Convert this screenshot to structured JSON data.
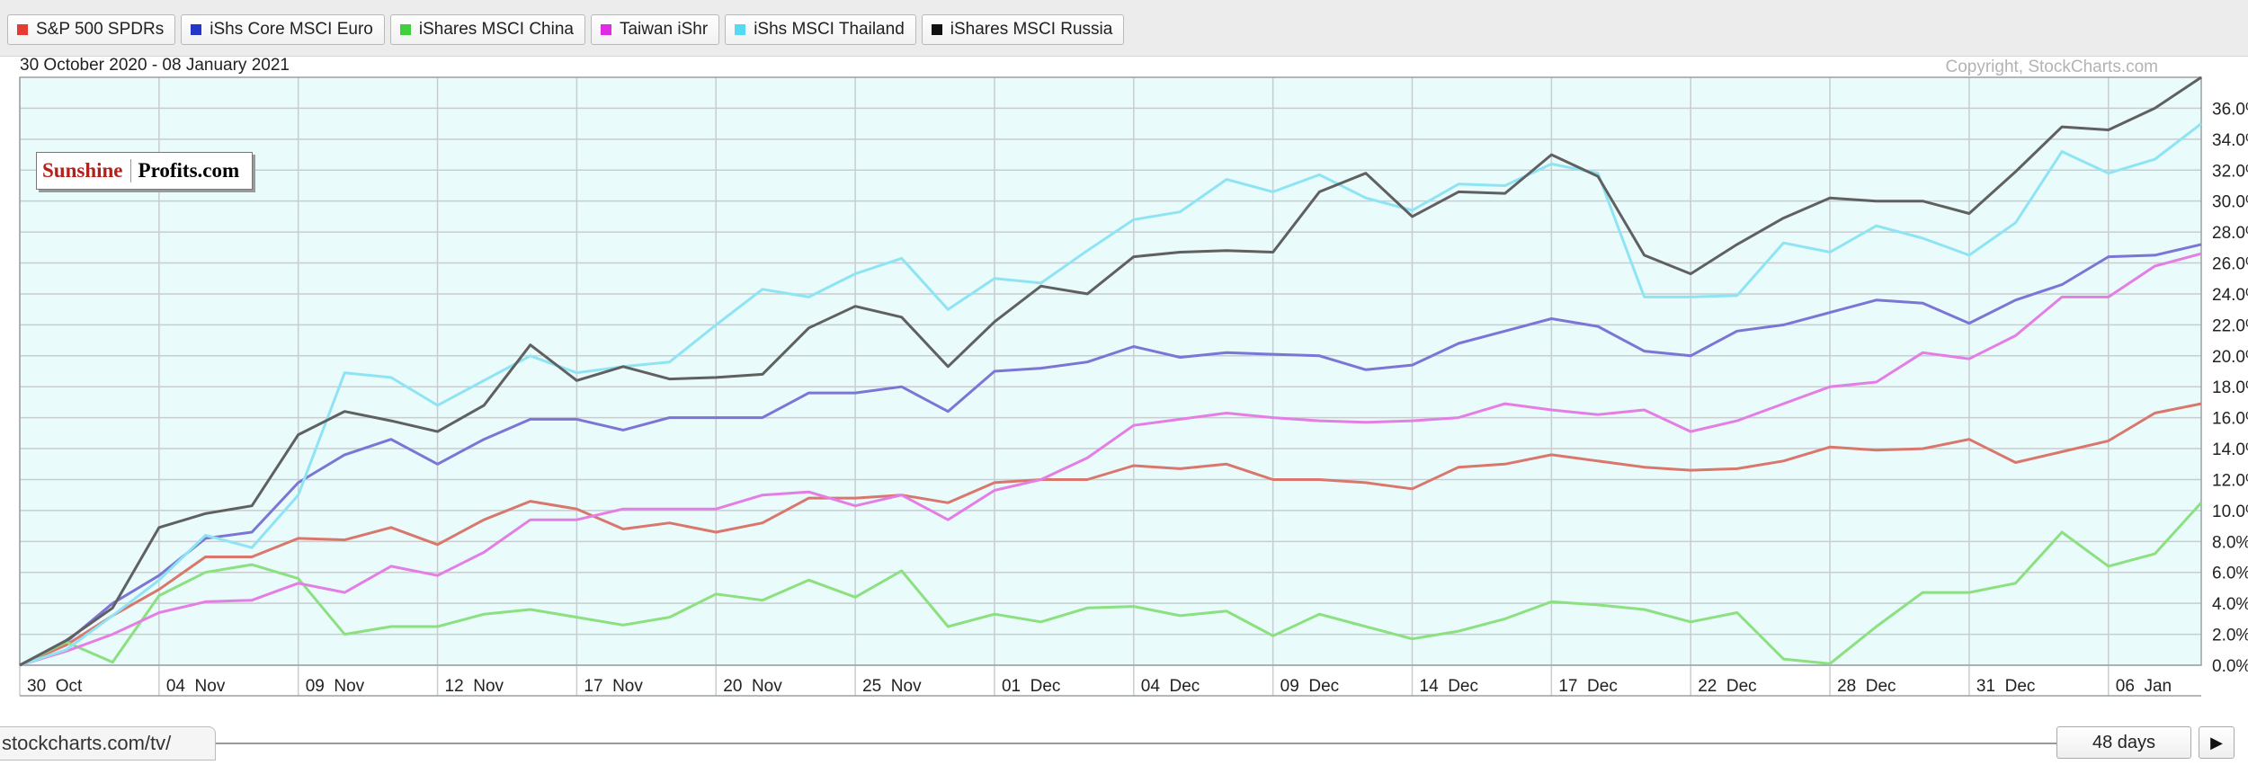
{
  "header": {
    "date_range": "30 October 2020 - 08 January 2021",
    "copyright": "Copyright, StockCharts.com"
  },
  "logo": {
    "part1": "Sunshine",
    "part2": "Profits.com"
  },
  "status_bar": {
    "url_text": "stockcharts.com/tv/"
  },
  "controls": {
    "range_label": "48 days",
    "play_icon": "▶"
  },
  "colors": {
    "plot_background": "#e9fbfb",
    "grid": "#c8cdd0"
  },
  "chart_data": {
    "type": "line",
    "y_unit": "%",
    "ylim": [
      0,
      38
    ],
    "ytick_values": [
      0,
      2,
      4,
      6,
      8,
      10,
      12,
      14,
      16,
      18,
      20,
      22,
      24,
      26,
      28,
      30,
      32,
      34,
      36
    ],
    "ytick_labels": [
      "0.0%",
      "2.0%",
      "4.0%",
      "6.0%",
      "8.0%",
      "10.0%",
      "12.0%",
      "14.0%",
      "16.0%",
      "18.0%",
      "20.0%",
      "22.0%",
      "24.0%",
      "26.0%",
      "28.0%",
      "30.0%",
      "32.0%",
      "34.0%",
      "36.0%"
    ],
    "grid": true,
    "legend_position": "top",
    "x": [
      "30 Oct",
      "02 Nov",
      "03 Nov",
      "04 Nov",
      "05 Nov",
      "06 Nov",
      "09 Nov",
      "10 Nov",
      "11 Nov",
      "12 Nov",
      "13 Nov",
      "16 Nov",
      "17 Nov",
      "18 Nov",
      "19 Nov",
      "20 Nov",
      "23 Nov",
      "24 Nov",
      "25 Nov",
      "27 Nov",
      "30 Nov",
      "01 Dec",
      "02 Dec",
      "03 Dec",
      "04 Dec",
      "07 Dec",
      "08 Dec",
      "09 Dec",
      "10 Dec",
      "11 Dec",
      "14 Dec",
      "15 Dec",
      "16 Dec",
      "17 Dec",
      "18 Dec",
      "21 Dec",
      "22 Dec",
      "23 Dec",
      "24 Dec",
      "28 Dec",
      "29 Dec",
      "30 Dec",
      "31 Dec",
      "04 Jan",
      "05 Jan",
      "06 Jan",
      "07 Jan",
      "08 Jan"
    ],
    "xtick_labels": [
      {
        "label": "30  Oct",
        "index": 0
      },
      {
        "label": "04  Nov",
        "index": 3
      },
      {
        "label": "09  Nov",
        "index": 6
      },
      {
        "label": "12  Nov",
        "index": 9
      },
      {
        "label": "17  Nov",
        "index": 12
      },
      {
        "label": "20  Nov",
        "index": 15
      },
      {
        "label": "25  Nov",
        "index": 18
      },
      {
        "label": "01  Dec",
        "index": 21
      },
      {
        "label": "04  Dec",
        "index": 24
      },
      {
        "label": "09  Dec",
        "index": 27
      },
      {
        "label": "14  Dec",
        "index": 30
      },
      {
        "label": "17  Dec",
        "index": 33
      },
      {
        "label": "22  Dec",
        "index": 36
      },
      {
        "label": "28  Dec",
        "index": 39
      },
      {
        "label": "31  Dec",
        "index": 42
      },
      {
        "label": "06  Jan",
        "index": 45
      }
    ],
    "series": [
      {
        "name": "S&P 500 SPDRs",
        "color": "#e43b32",
        "line_color": "#d9776c",
        "values": [
          0,
          1.3,
          3.2,
          4.9,
          7.0,
          7.0,
          8.2,
          8.1,
          8.9,
          7.8,
          9.4,
          10.6,
          10.1,
          8.8,
          9.2,
          8.6,
          9.2,
          10.8,
          10.8,
          11.0,
          10.5,
          11.8,
          12.0,
          12.0,
          12.9,
          12.7,
          13.0,
          12.0,
          12.0,
          11.8,
          11.4,
          12.8,
          13.0,
          13.6,
          13.2,
          12.8,
          12.6,
          12.7,
          13.2,
          14.1,
          13.9,
          14.0,
          14.6,
          13.1,
          13.8,
          14.5,
          16.3,
          16.9
        ]
      },
      {
        "name": "iShs Core MSCI Euro",
        "color": "#2535c9",
        "line_color": "#7b75d6",
        "values": [
          0,
          1.5,
          4.0,
          5.8,
          8.2,
          8.6,
          11.8,
          13.6,
          14.6,
          13.0,
          14.6,
          15.9,
          15.9,
          15.2,
          16.0,
          16.0,
          16.0,
          17.6,
          17.6,
          18.0,
          16.4,
          19.0,
          19.2,
          19.6,
          20.6,
          19.9,
          20.2,
          20.1,
          20.0,
          19.1,
          19.4,
          20.8,
          21.6,
          22.4,
          21.9,
          20.3,
          20.0,
          21.6,
          22.0,
          22.8,
          23.6,
          23.4,
          22.1,
          23.6,
          24.6,
          26.4,
          26.5,
          27.2
        ]
      },
      {
        "name": "iShares MSCI China",
        "color": "#3fd13b",
        "line_color": "#8be07f",
        "values": [
          0,
          1.5,
          0.2,
          4.5,
          6.0,
          6.5,
          5.6,
          2.0,
          2.5,
          2.5,
          3.3,
          3.6,
          3.1,
          2.6,
          3.1,
          4.6,
          4.2,
          5.5,
          4.4,
          6.1,
          2.5,
          3.3,
          2.8,
          3.7,
          3.8,
          3.2,
          3.5,
          1.9,
          3.3,
          2.5,
          1.7,
          2.2,
          3.0,
          4.1,
          3.9,
          3.6,
          2.8,
          3.4,
          0.4,
          0.1,
          2.5,
          4.7,
          4.7,
          5.3,
          8.6,
          6.4,
          7.2,
          10.5
        ]
      },
      {
        "name": "Taiwan iShr",
        "color": "#e02be6",
        "line_color": "#e47ee4",
        "values": [
          0,
          0.9,
          2.0,
          3.4,
          4.1,
          4.2,
          5.3,
          4.7,
          6.4,
          5.8,
          7.3,
          9.4,
          9.4,
          10.1,
          10.1,
          10.1,
          11.0,
          11.2,
          10.3,
          11.0,
          9.4,
          11.3,
          12.0,
          13.4,
          15.5,
          15.9,
          16.3,
          16.0,
          15.8,
          15.7,
          15.8,
          16.0,
          16.9,
          16.5,
          16.2,
          16.5,
          15.1,
          15.8,
          16.9,
          18.0,
          18.3,
          20.2,
          19.8,
          21.3,
          23.8,
          23.8,
          25.8,
          26.6
        ]
      },
      {
        "name": "iShs MSCI Thailand",
        "color": "#56d9f2",
        "line_color": "#8fe4f4",
        "values": [
          0,
          1.0,
          3.2,
          5.5,
          8.4,
          7.6,
          11.0,
          18.9,
          18.6,
          16.8,
          18.4,
          20.0,
          18.9,
          19.3,
          19.6,
          22.0,
          24.3,
          23.8,
          25.3,
          26.3,
          23.0,
          25.0,
          24.7,
          26.8,
          28.8,
          29.3,
          31.4,
          30.6,
          31.7,
          30.2,
          29.4,
          31.1,
          31.0,
          32.4,
          31.8,
          23.8,
          23.8,
          23.9,
          27.3,
          26.7,
          28.4,
          27.6,
          26.5,
          28.6,
          33.2,
          31.8,
          32.7,
          35.0
        ]
      },
      {
        "name": "iShares MSCI Russia",
        "color": "#111111",
        "line_color": "#606060",
        "values": [
          0,
          1.6,
          3.7,
          8.9,
          9.8,
          10.3,
          14.9,
          16.4,
          15.8,
          15.1,
          16.8,
          20.7,
          18.4,
          19.3,
          18.5,
          18.6,
          18.8,
          21.8,
          23.2,
          22.5,
          19.3,
          22.2,
          24.5,
          24.0,
          26.4,
          26.7,
          26.8,
          26.7,
          30.6,
          31.8,
          29.0,
          30.6,
          30.5,
          33.0,
          31.6,
          26.5,
          25.3,
          27.2,
          28.9,
          30.2,
          30.0,
          30.0,
          29.2,
          31.9,
          34.8,
          34.6,
          36.0,
          38.0
        ]
      }
    ]
  }
}
